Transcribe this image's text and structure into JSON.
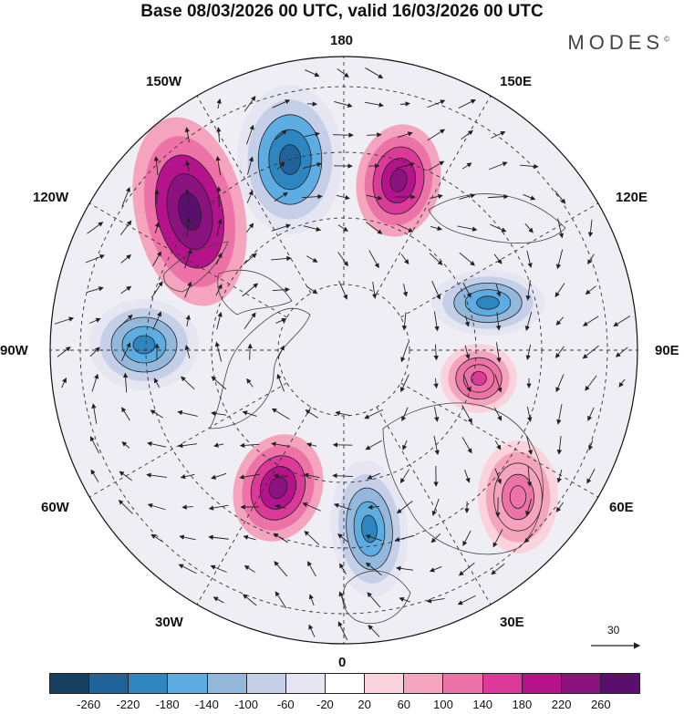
{
  "title": "Base 08/03/2026 00 UTC, valid 16/03/2026 00 UTC",
  "brand": {
    "name": "MODES",
    "mark": "©"
  },
  "map_labels": {
    "top": "180",
    "bottom": "0",
    "left": "90W",
    "right": "90E",
    "upper_left": "150W",
    "upper_right": "150E",
    "mid_upper_left": "120W",
    "mid_upper_right": "120E",
    "mid_lower_left": "60W",
    "mid_lower_right": "60E",
    "lower_left": "30W",
    "lower_right": "30E"
  },
  "reference_vector": {
    "value": "30",
    "icon": "right-arrow-icon"
  },
  "colorbar": {
    "colors": [
      "#173f5f",
      "#20639b",
      "#2e86c1",
      "#5dade2",
      "#94b8db",
      "#c6cfe8",
      "#e6e6f2",
      "#ffffff",
      "#fbd3dc",
      "#f4a4bc",
      "#ec72a7",
      "#dc3a98",
      "#b5138c",
      "#8a137f",
      "#5a0f6f"
    ],
    "ticks": [
      "-260",
      "-220",
      "-180",
      "-140",
      "-100",
      "-60",
      "-20",
      "20",
      "60",
      "100",
      "140",
      "180",
      "220",
      "260"
    ]
  },
  "anomaly_centers": [
    {
      "name": "positive-center-150w",
      "sign": "positive",
      "strength": 260
    },
    {
      "name": "negative-center-180",
      "sign": "negative",
      "strength": -260
    },
    {
      "name": "positive-center-160e",
      "sign": "positive",
      "strength": 220
    },
    {
      "name": "negative-center-100e",
      "sign": "negative",
      "strength": -220
    },
    {
      "name": "negative-center-90w",
      "sign": "negative",
      "strength": -220
    },
    {
      "name": "positive-center-80e",
      "sign": "positive",
      "strength": 140
    },
    {
      "name": "positive-center-45w",
      "sign": "positive",
      "strength": 220
    },
    {
      "name": "negative-center-10e",
      "sign": "negative",
      "strength": -220
    },
    {
      "name": "positive-center-60e",
      "sign": "positive",
      "strength": 100
    }
  ]
}
